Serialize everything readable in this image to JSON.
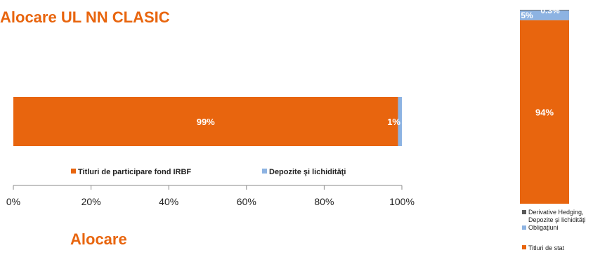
{
  "page": {
    "title": "Alocare UL NN CLASIC",
    "subtitle": "Alocare"
  },
  "colors": {
    "orange": "#e8650e",
    "blue": "#8db3e2",
    "gray": "#595959",
    "white": "#ffffff"
  },
  "chart_data": [
    {
      "type": "bar",
      "orientation": "horizontal",
      "stacked": true,
      "categories": [
        ""
      ],
      "series": [
        {
          "name": "Titluri de participare fond IRBF",
          "values": [
            99
          ],
          "label": "99%",
          "color": "#e8650e"
        },
        {
          "name": "Depozite şi lichidităţi",
          "values": [
            1
          ],
          "label": "1%",
          "color": "#8db3e2"
        }
      ],
      "xlim": [
        0,
        100
      ],
      "ticks": [
        "0%",
        "20%",
        "40%",
        "60%",
        "80%",
        "100%"
      ],
      "tick_values": [
        0,
        20,
        40,
        60,
        80,
        100
      ],
      "legend": "bottom",
      "grid": false
    },
    {
      "type": "bar",
      "orientation": "vertical",
      "stacked": true,
      "categories": [
        ""
      ],
      "series": [
        {
          "name": "Titluri de stat",
          "values": [
            94
          ],
          "label": "94%",
          "color": "#e8650e"
        },
        {
          "name": "Obligaţiuni",
          "values": [
            5
          ],
          "label": "5%",
          "color": "#8db3e2"
        },
        {
          "name": "Derivative Hedging, Depozite şi lichidităţi",
          "values": [
            0.3
          ],
          "label": "0.3%",
          "color": "#595959"
        }
      ],
      "ylim": [
        0,
        100
      ],
      "legend": "bottom",
      "grid": false
    }
  ]
}
